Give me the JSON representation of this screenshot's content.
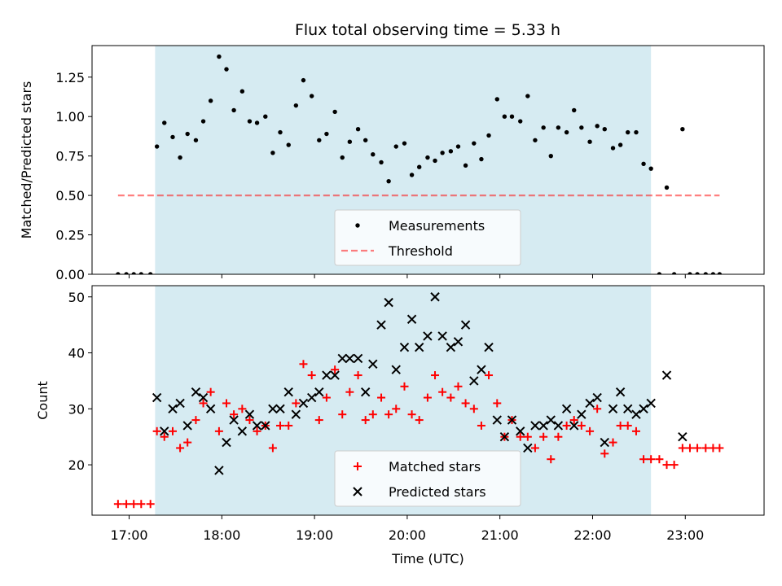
{
  "title": "Flux total observing time = 5.33 h",
  "colors": {
    "shade": "#add8e6",
    "measurement": "#000000",
    "threshold": "#ff0000",
    "matched": "#ff0000",
    "predicted": "#000000"
  },
  "chart_data": [
    {
      "type": "scatter",
      "panel": "top",
      "ylabel": "Matched/Predicted stars",
      "xlim": [
        16.6,
        23.85
      ],
      "ylim": [
        0,
        1.45
      ],
      "yticks": [
        0,
        0.25,
        0.5,
        0.75,
        1.0,
        1.25
      ],
      "ytick_labels": [
        "0.00",
        "0.25",
        "0.50",
        "0.75",
        "1.00",
        "1.25"
      ],
      "xticks": [
        17,
        18,
        19,
        20,
        21,
        22,
        23
      ],
      "shaded_span": [
        17.28,
        22.63
      ],
      "legend": {
        "position": "lower center",
        "entries": [
          "Measurements",
          "Threshold"
        ]
      },
      "threshold": {
        "name": "Threshold",
        "y": 0.5,
        "x_range": [
          16.88,
          23.37
        ]
      },
      "series": [
        {
          "name": "Measurements",
          "x": [
            16.88,
            16.97,
            17.05,
            17.13,
            17.23,
            17.3,
            17.38,
            17.47,
            17.55,
            17.63,
            17.72,
            17.8,
            17.88,
            17.97,
            18.05,
            18.13,
            18.22,
            18.3,
            18.38,
            18.47,
            18.55,
            18.63,
            18.72,
            18.8,
            18.88,
            18.97,
            19.05,
            19.13,
            19.22,
            19.3,
            19.38,
            19.47,
            19.55,
            19.63,
            19.72,
            19.8,
            19.88,
            19.97,
            20.05,
            20.13,
            20.22,
            20.3,
            20.38,
            20.47,
            20.55,
            20.63,
            20.72,
            20.8,
            20.88,
            20.97,
            21.05,
            21.13,
            21.22,
            21.3,
            21.38,
            21.47,
            21.55,
            21.63,
            21.72,
            21.8,
            21.88,
            21.97,
            22.05,
            22.13,
            22.22,
            22.3,
            22.38,
            22.47,
            22.55,
            22.63,
            22.72,
            22.8,
            22.88,
            22.97,
            23.05,
            23.13,
            23.22,
            23.3,
            23.37
          ],
          "y": [
            0,
            0,
            0,
            0,
            0,
            0.81,
            0.96,
            0.87,
            0.74,
            0.89,
            0.85,
            0.97,
            1.1,
            1.38,
            1.3,
            1.04,
            1.16,
            0.97,
            0.96,
            1.0,
            0.77,
            0.9,
            0.82,
            1.07,
            1.23,
            1.13,
            0.85,
            0.89,
            1.03,
            0.74,
            0.84,
            0.92,
            0.85,
            0.76,
            0.71,
            0.59,
            0.81,
            0.83,
            0.63,
            0.68,
            0.74,
            0.72,
            0.77,
            0.78,
            0.81,
            0.69,
            0.83,
            0.73,
            0.88,
            1.11,
            1.0,
            1.0,
            0.97,
            1.13,
            0.85,
            0.93,
            0.75,
            0.93,
            0.9,
            1.04,
            0.93,
            0.84,
            0.94,
            0.92,
            0.8,
            0.82,
            0.9,
            0.9,
            0.7,
            0.67,
            0,
            0.55,
            0,
            0.92,
            0,
            0,
            0,
            0,
            0
          ]
        }
      ]
    },
    {
      "type": "scatter",
      "panel": "bottom",
      "ylabel": "Count",
      "xlabel": "Time (UTC)",
      "xlim": [
        16.6,
        23.85
      ],
      "ylim": [
        11,
        52
      ],
      "yticks": [
        20,
        30,
        40,
        50
      ],
      "xticks": [
        17,
        18,
        19,
        20,
        21,
        22,
        23
      ],
      "xtick_labels": [
        "17:00",
        "18:00",
        "19:00",
        "20:00",
        "21:00",
        "22:00",
        "23:00"
      ],
      "shaded_span": [
        17.28,
        22.63
      ],
      "legend": {
        "position": "lower center",
        "entries": [
          "Matched stars",
          "Predicted stars"
        ]
      },
      "series": [
        {
          "name": "Matched stars",
          "marker": "+",
          "x": [
            16.88,
            16.97,
            17.05,
            17.13,
            17.23,
            17.3,
            17.38,
            17.47,
            17.55,
            17.63,
            17.72,
            17.8,
            17.88,
            17.97,
            18.05,
            18.13,
            18.22,
            18.3,
            18.38,
            18.47,
            18.55,
            18.63,
            18.72,
            18.8,
            18.88,
            18.97,
            19.05,
            19.13,
            19.22,
            19.3,
            19.38,
            19.47,
            19.55,
            19.63,
            19.72,
            19.8,
            19.88,
            19.97,
            20.05,
            20.13,
            20.22,
            20.3,
            20.38,
            20.47,
            20.55,
            20.63,
            20.72,
            20.8,
            20.88,
            20.97,
            21.05,
            21.13,
            21.22,
            21.3,
            21.38,
            21.47,
            21.55,
            21.63,
            21.72,
            21.8,
            21.88,
            21.97,
            22.05,
            22.13,
            22.22,
            22.3,
            22.38,
            22.47,
            22.55,
            22.63,
            22.72,
            22.8,
            22.88,
            22.97,
            23.05,
            23.13,
            23.22,
            23.3,
            23.37
          ],
          "y": [
            13,
            13,
            13,
            13,
            13,
            26,
            25,
            26,
            23,
            24,
            28,
            31,
            33,
            26,
            31,
            29,
            30,
            28,
            26,
            27,
            23,
            27,
            27,
            31,
            38,
            36,
            28,
            32,
            37,
            29,
            33,
            36,
            28,
            29,
            32,
            29,
            30,
            34,
            29,
            28,
            32,
            36,
            33,
            32,
            34,
            31,
            30,
            27,
            36,
            31,
            25,
            28,
            25,
            25,
            23,
            25,
            21,
            25,
            27,
            28,
            27,
            26,
            30,
            22,
            24,
            27,
            27,
            26,
            21,
            21,
            21,
            20,
            20,
            23,
            23,
            23,
            23,
            23,
            23
          ]
        },
        {
          "name": "Predicted stars",
          "marker": "x",
          "x": [
            17.3,
            17.38,
            17.47,
            17.55,
            17.63,
            17.72,
            17.8,
            17.88,
            17.97,
            18.05,
            18.13,
            18.22,
            18.3,
            18.38,
            18.47,
            18.55,
            18.63,
            18.72,
            18.8,
            18.88,
            18.97,
            19.05,
            19.13,
            19.22,
            19.3,
            19.38,
            19.47,
            19.55,
            19.63,
            19.72,
            19.8,
            19.88,
            19.97,
            20.05,
            20.13,
            20.22,
            20.3,
            20.38,
            20.47,
            20.55,
            20.63,
            20.72,
            20.8,
            20.88,
            20.97,
            21.05,
            21.13,
            21.22,
            21.3,
            21.38,
            21.47,
            21.55,
            21.63,
            21.72,
            21.8,
            21.88,
            21.97,
            22.05,
            22.13,
            22.22,
            22.3,
            22.38,
            22.47,
            22.55,
            22.63,
            22.8,
            22.97
          ],
          "y": [
            32,
            26,
            30,
            31,
            27,
            33,
            32,
            30,
            19,
            24,
            28,
            26,
            29,
            27,
            27,
            30,
            30,
            33,
            29,
            31,
            32,
            33,
            36,
            36,
            39,
            39,
            39,
            33,
            38,
            45,
            49,
            37,
            41,
            46,
            41,
            43,
            50,
            43,
            41,
            42,
            45,
            35,
            37,
            41,
            28,
            25,
            28,
            26,
            23,
            27,
            27,
            28,
            27,
            30,
            27,
            29,
            31,
            32,
            24,
            30,
            33,
            30,
            29,
            30,
            31,
            36,
            25
          ]
        }
      ]
    }
  ]
}
